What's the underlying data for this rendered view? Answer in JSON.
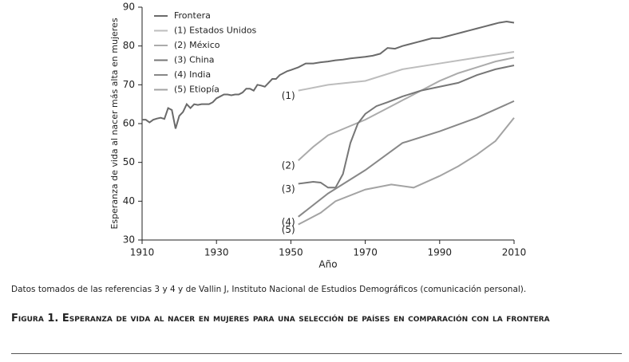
{
  "chart_data": {
    "type": "line",
    "xlabel": "Año",
    "ylabel": "Esperanza de vida al nacer más alta en mujeres",
    "xlim": [
      1910,
      2010
    ],
    "xticks": [
      1910,
      1930,
      1950,
      1970,
      1990,
      2010
    ],
    "ylim": [
      30,
      90
    ],
    "yticks": [
      30,
      40,
      50,
      60,
      70,
      80,
      90
    ],
    "legend": "upper-left",
    "series": [
      {
        "name": "Frontera",
        "color": "#6a6a6a",
        "x": [
          1910,
          1911,
          1912,
          1913,
          1914,
          1915,
          1916,
          1917,
          1918,
          1919,
          1920,
          1921,
          1922,
          1923,
          1924,
          1925,
          1926,
          1927,
          1928,
          1929,
          1930,
          1931,
          1932,
          1933,
          1934,
          1935,
          1936,
          1937,
          1938,
          1939,
          1940,
          1941,
          1942,
          1943,
          1944,
          1945,
          1946,
          1947,
          1948,
          1949,
          1950,
          1952,
          1954,
          1956,
          1958,
          1960,
          1962,
          1964,
          1966,
          1968,
          1970,
          1972,
          1974,
          1976,
          1978,
          1980,
          1982,
          1984,
          1986,
          1988,
          1990,
          1992,
          1994,
          1996,
          1998,
          2000,
          2002,
          2004,
          2006,
          2008,
          2010
        ],
        "values": [
          61,
          61,
          60.3,
          61,
          61.3,
          61.5,
          61.2,
          64,
          63.5,
          58.7,
          62,
          63,
          65,
          64,
          65,
          64.8,
          65,
          65,
          65,
          65.5,
          66.5,
          67,
          67.5,
          67.5,
          67.3,
          67.5,
          67.5,
          68,
          69,
          69,
          68.5,
          70,
          69.8,
          69.5,
          70.5,
          71.5,
          71.5,
          72.5,
          73,
          73.5,
          73.8,
          74.5,
          75.5,
          75.5,
          75.8,
          76,
          76.3,
          76.5,
          76.8,
          77,
          77.2,
          77.5,
          78,
          79.5,
          79.3,
          80,
          80.5,
          81,
          81.5,
          82,
          82,
          82.5,
          83,
          83.5,
          84,
          84.5,
          85,
          85.5,
          86,
          86.3,
          86
        ]
      },
      {
        "name": "(1) Estados Unidos",
        "label": "(1)",
        "color": "#bdbdbd",
        "x": [
          1952,
          1960,
          1970,
          1980,
          1990,
          2000,
          2010
        ],
        "values": [
          68.5,
          70,
          71,
          74,
          75.5,
          77,
          78.5
        ]
      },
      {
        "name": "(2) México",
        "label": "(2)",
        "color": "#ababab",
        "x": [
          1952,
          1956,
          1960,
          1965,
          1970,
          1975,
          1980,
          1985,
          1990,
          1995,
          2000,
          2005,
          2010
        ],
        "values": [
          50.5,
          54,
          57,
          59,
          61,
          63.5,
          66,
          68.5,
          71,
          73,
          74.5,
          76,
          77
        ]
      },
      {
        "name": "(3) China",
        "label": "(3)",
        "color": "#777777",
        "x": [
          1952,
          1956,
          1958,
          1960,
          1962,
          1964,
          1966,
          1968,
          1970,
          1973,
          1976,
          1980,
          1985,
          1990,
          1995,
          2000,
          2005,
          2010
        ],
        "values": [
          44.5,
          45,
          44.8,
          43.5,
          43.5,
          47,
          55,
          60,
          62.5,
          64.5,
          65.5,
          67,
          68.5,
          69.5,
          70.5,
          72.5,
          74,
          75
        ]
      },
      {
        "name": "(4) India",
        "label": "(4)",
        "color": "#888888",
        "x": [
          1952,
          1960,
          1970,
          1980,
          1990,
          2000,
          2010
        ],
        "values": [
          36,
          42,
          48,
          55,
          58,
          61.5,
          65.8
        ]
      },
      {
        "name": "(5) Etiopía",
        "label": "(5)",
        "color": "#a3a3a3",
        "x": [
          1952,
          1958,
          1962,
          1970,
          1977,
          1983,
          1990,
          1995,
          2000,
          2005,
          2010
        ],
        "values": [
          34,
          37,
          40,
          43,
          44.3,
          43.5,
          46.5,
          49,
          52,
          55.5,
          61.5
        ]
      }
    ]
  },
  "source_note": "Datos tomados de las referencias 3 y 4 y de Vallin J, Instituto Nacional de Estudios Demográficos (comunicación personal).",
  "caption": "Figura 1. Esperanza de vida al nacer en mujeres para una selección de países en comparación con la frontera"
}
